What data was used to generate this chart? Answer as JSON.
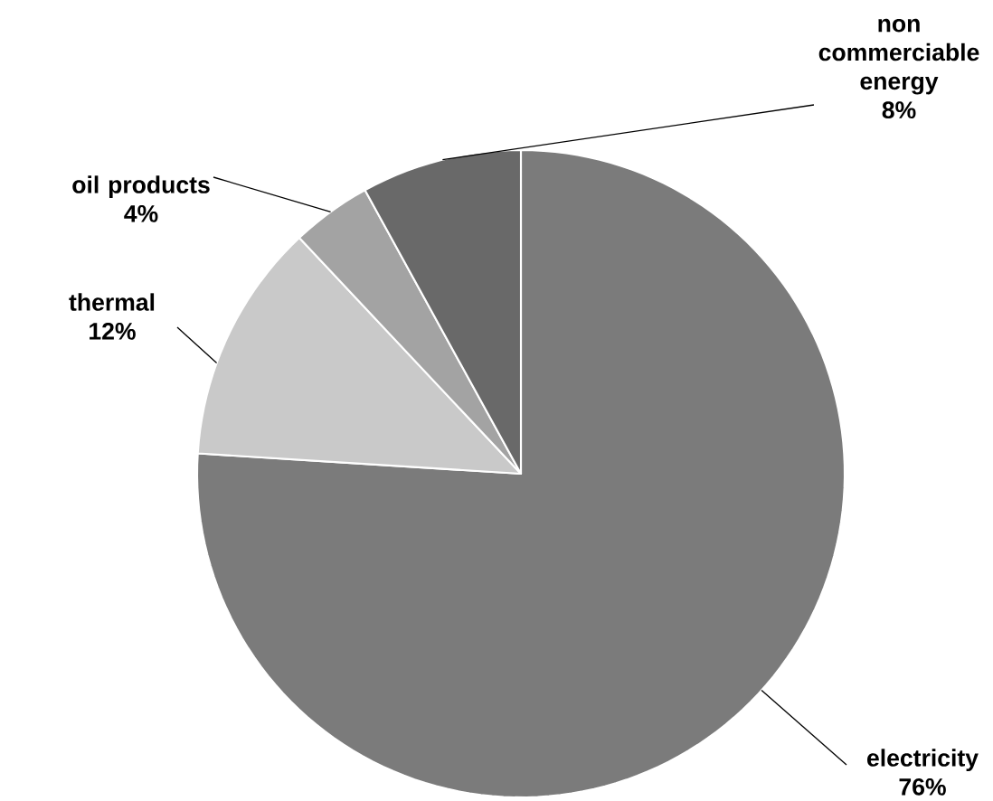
{
  "chart_data": {
    "type": "pie",
    "categories": [
      "electricity",
      "thermal",
      "oil products",
      "non commerciable energy"
    ],
    "values": [
      76,
      12,
      4,
      8
    ],
    "value_labels": [
      "76%",
      "12%",
      "4%",
      "8%"
    ],
    "colors": [
      "#7b7b7b",
      "#c9c9c9",
      "#a3a3a3",
      "#696969"
    ]
  }
}
